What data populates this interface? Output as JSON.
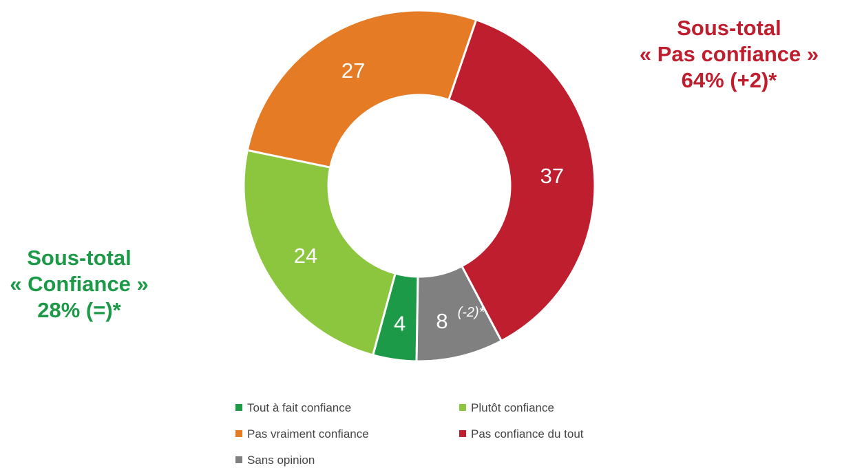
{
  "chart_data": {
    "type": "pie",
    "variant": "donut",
    "slices": [
      {
        "label": "Pas confiance du tout",
        "value": 37,
        "color": "#be1e2d"
      },
      {
        "label": "Sans opinion",
        "value": 8,
        "color": "#808080",
        "annotation": "(-2)*"
      },
      {
        "label": "Tout à fait confiance",
        "value": 4,
        "color": "#1c9a48"
      },
      {
        "label": "Plutôt confiance",
        "value": 24,
        "color": "#8cc63f"
      },
      {
        "label": "Pas vraiment confiance",
        "value": 27,
        "color": "#e57b25"
      }
    ],
    "legend": {
      "placement": "bottom",
      "order": [
        "Tout à fait confiance",
        "Plutôt confiance",
        "Pas vraiment confiance",
        "Pas confiance du tout",
        "Sans opinion"
      ]
    }
  },
  "subtotals": {
    "negative": {
      "line1": "Sous-total",
      "line2": "« Pas confiance »",
      "line3": "64% (+2)*",
      "color": "#be1e2d"
    },
    "positive": {
      "line1": "Sous-total",
      "line2": "« Confiance »",
      "line3": "28% (=)*",
      "color": "#1c9a48"
    }
  }
}
